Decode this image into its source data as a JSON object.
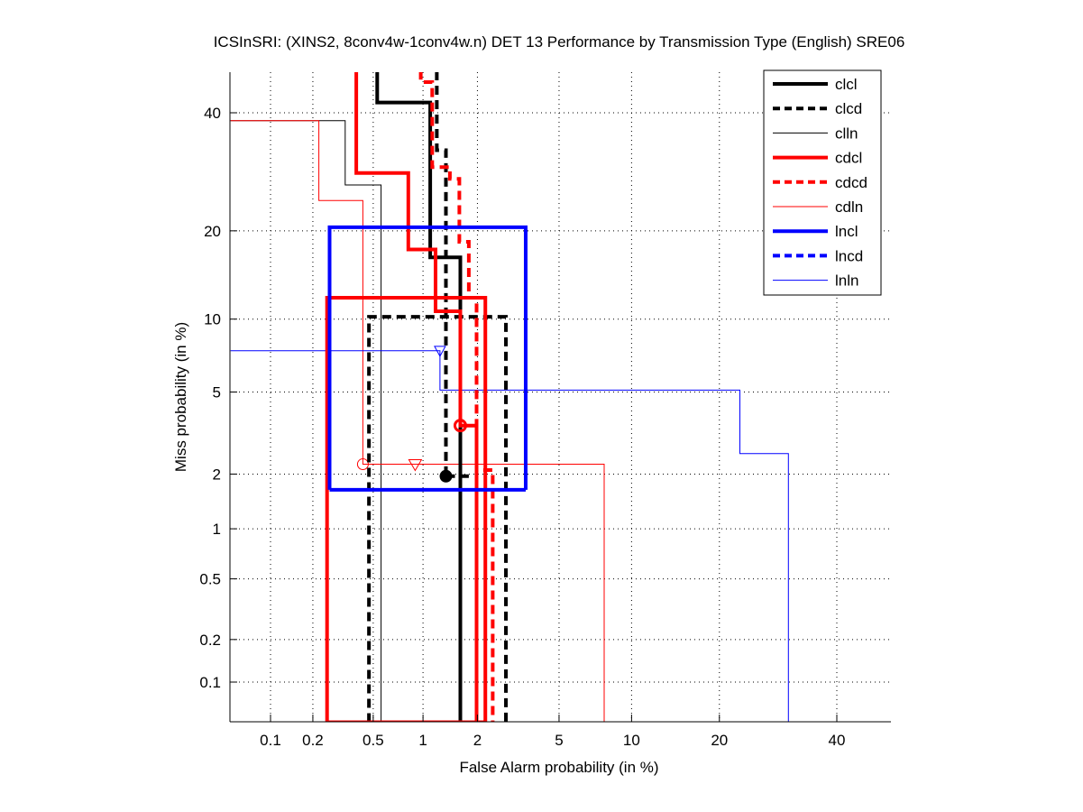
{
  "chart_data": {
    "type": "line",
    "title": "ICSInSRI: (XINS2, 8conv4w-1conv4w.n) DET 13 Performance by Transmission Type (English) SRE06",
    "xlabel": "False Alarm probability (in %)",
    "ylabel": "Miss probability (in %)",
    "xscale": "probit",
    "yscale": "probit",
    "xlim": [
      0.05,
      60
    ],
    "ylim": [
      0.05,
      54
    ],
    "grid": true,
    "legend_position": "top-right",
    "xticks": [
      0.1,
      0.2,
      0.5,
      1,
      2,
      5,
      10,
      20,
      40
    ],
    "xtick_labels": [
      "0.1",
      "0.2",
      "0.5",
      "1",
      "2",
      "5",
      "10",
      "20",
      "40"
    ],
    "yticks": [
      0.1,
      0.2,
      0.5,
      1,
      2,
      5,
      10,
      20,
      40
    ],
    "ytick_labels": [
      "0.1",
      "0.2",
      "0.5",
      "1",
      "2",
      "5",
      "10",
      "20",
      "40"
    ],
    "series": [
      {
        "name": "clcl",
        "color": "#000000",
        "style": "solid",
        "weight": "thick",
        "points": [
          [
            0.53,
            54
          ],
          [
            0.53,
            42
          ],
          [
            1.1,
            42
          ],
          [
            1.1,
            16.5
          ],
          [
            1.62,
            16.5
          ],
          [
            1.62,
            0.05
          ]
        ],
        "marker": {
          "type": "none"
        }
      },
      {
        "name": "clcd",
        "color": "#000000",
        "style": "dashed",
        "weight": "thick",
        "points": [
          [
            1.0,
            54
          ],
          [
            1.2,
            54
          ],
          [
            1.2,
            33
          ],
          [
            1.35,
            33
          ],
          [
            1.35,
            1.95
          ],
          [
            1.35,
            1.95
          ],
          [
            1.35,
            1.95
          ]
        ],
        "box": [
          0.47,
          10.2,
          2.8,
          0.05
        ],
        "marker": {
          "type": "dot",
          "at": [
            1.35,
            1.95
          ]
        }
      },
      {
        "name": "clln",
        "color": "#000000",
        "style": "solid",
        "weight": "thin",
        "points": [
          [
            0.05,
            38.5
          ],
          [
            0.33,
            38.5
          ],
          [
            0.33,
            27
          ],
          [
            0.56,
            27
          ],
          [
            0.56,
            0.05
          ]
        ],
        "marker": {
          "type": "none"
        }
      },
      {
        "name": "cdcl",
        "color": "#ff0000",
        "style": "solid",
        "weight": "thick",
        "points": [
          [
            0.39,
            54
          ],
          [
            0.39,
            29
          ],
          [
            0.82,
            29
          ],
          [
            0.82,
            17.5
          ],
          [
            1.18,
            17.5
          ],
          [
            1.18,
            10.7
          ],
          [
            1.62,
            10.7
          ],
          [
            1.62,
            3.5
          ],
          [
            1.98,
            3.5
          ],
          [
            1.98,
            0.05
          ]
        ],
        "box": [
          0.25,
          12,
          2.2,
          0.05
        ],
        "marker": {
          "type": "circle-dot",
          "at": [
            1.62,
            3.5
          ]
        }
      },
      {
        "name": "cdcd",
        "color": "#ff0000",
        "style": "dashed",
        "weight": "thick",
        "points": [
          [
            0.97,
            54
          ],
          [
            0.97,
            46
          ],
          [
            1.13,
            46
          ],
          [
            1.13,
            30
          ],
          [
            1.42,
            30
          ],
          [
            1.42,
            28
          ],
          [
            1.6,
            28
          ],
          [
            1.6,
            18.5
          ],
          [
            1.8,
            18.5
          ],
          [
            1.8,
            12
          ],
          [
            1.98,
            12
          ],
          [
            1.98,
            2.1
          ],
          [
            2.4,
            2.1
          ],
          [
            2.4,
            0.05
          ]
        ],
        "marker": {
          "type": "none"
        }
      },
      {
        "name": "cdln",
        "color": "#ff0000",
        "style": "solid",
        "weight": "thin",
        "points": [
          [
            0.05,
            38.5
          ],
          [
            0.22,
            38.5
          ],
          [
            0.22,
            24.5
          ],
          [
            0.43,
            24.5
          ],
          [
            0.43,
            2.25
          ],
          [
            7.8,
            2.25
          ],
          [
            7.8,
            0.05
          ]
        ],
        "marker": {
          "type": "open-circle-and-triangle",
          "circle": [
            0.43,
            2.25
          ],
          "triangle": [
            0.9,
            2.25
          ]
        }
      },
      {
        "name": "lncl",
        "color": "#0000ff",
        "style": "solid",
        "weight": "thick",
        "box": [
          0.26,
          20.5,
          3.5,
          1.65
        ],
        "marker": {
          "type": "none"
        }
      },
      {
        "name": "lncd",
        "color": "#0000ff",
        "style": "dashed",
        "weight": "thick",
        "points": [],
        "marker": {
          "type": "none"
        }
      },
      {
        "name": "lnln",
        "color": "#0000ff",
        "style": "solid",
        "weight": "thin",
        "points": [
          [
            0.05,
            7.5
          ],
          [
            1.25,
            7.5
          ],
          [
            1.25,
            5.1
          ],
          [
            23,
            5.1
          ],
          [
            23,
            2.55
          ],
          [
            31,
            2.55
          ],
          [
            31,
            0.05
          ]
        ],
        "marker": {
          "type": "open-triangle",
          "at": [
            1.25,
            7.5
          ]
        }
      }
    ]
  }
}
